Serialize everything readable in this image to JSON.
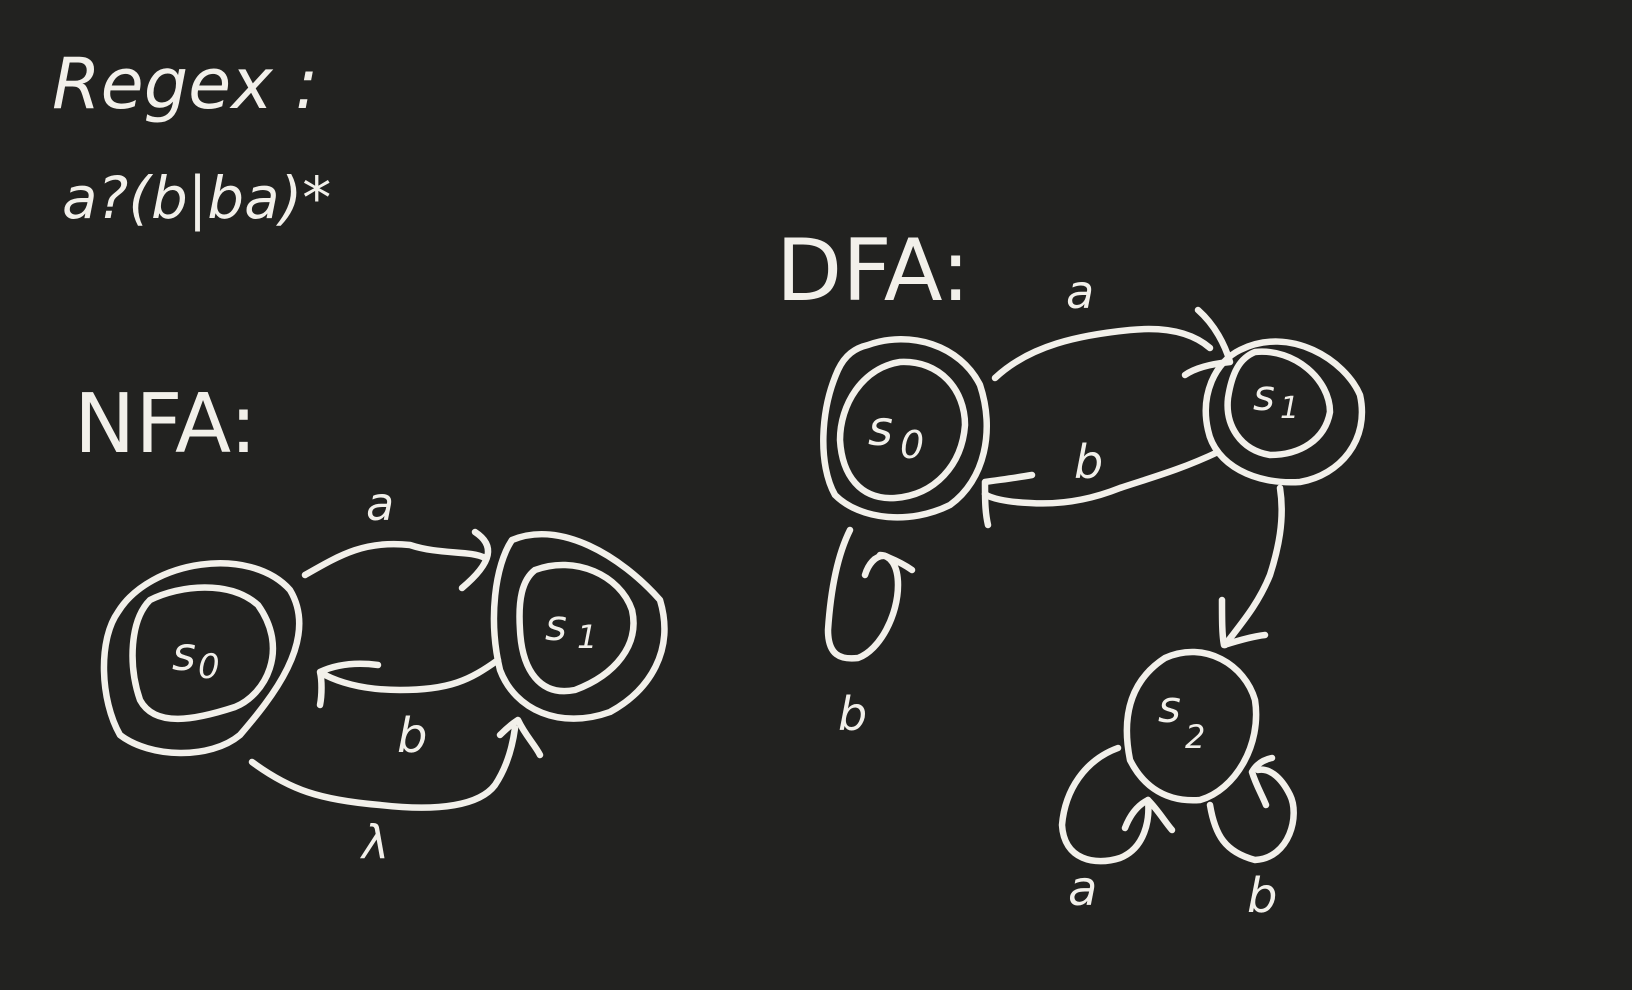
{
  "regex": {
    "heading": "Regex :",
    "expression": "a?(b|ba)*"
  },
  "nfa": {
    "heading": "NFA:",
    "states": [
      {
        "label": "s",
        "sub": "0",
        "accepting": true
      },
      {
        "label": "s",
        "sub": "1",
        "accepting": true
      }
    ],
    "transitions": [
      {
        "from": "s0",
        "to": "s1",
        "label": "a"
      },
      {
        "from": "s1",
        "to": "s0",
        "label": "b"
      },
      {
        "from": "s0",
        "to": "s1",
        "label": "λ"
      }
    ]
  },
  "dfa": {
    "heading": "DFA:",
    "states": [
      {
        "label": "s",
        "sub": "0",
        "accepting": true
      },
      {
        "label": "s",
        "sub": "1",
        "accepting": true
      },
      {
        "label": "s",
        "sub": "2",
        "accepting": false
      }
    ],
    "transitions": [
      {
        "from": "s0",
        "to": "s1",
        "label": "a"
      },
      {
        "from": "s1",
        "to": "s0",
        "label": "b"
      },
      {
        "from": "s0",
        "to": "s0",
        "label": "b"
      },
      {
        "from": "s1",
        "to": "s2",
        "label": ""
      },
      {
        "from": "s2",
        "to": "s2",
        "label": "a"
      },
      {
        "from": "s2",
        "to": "s2",
        "label": "b"
      }
    ]
  },
  "colors": {
    "background": "#222220",
    "ink": "#f2f0ea"
  }
}
